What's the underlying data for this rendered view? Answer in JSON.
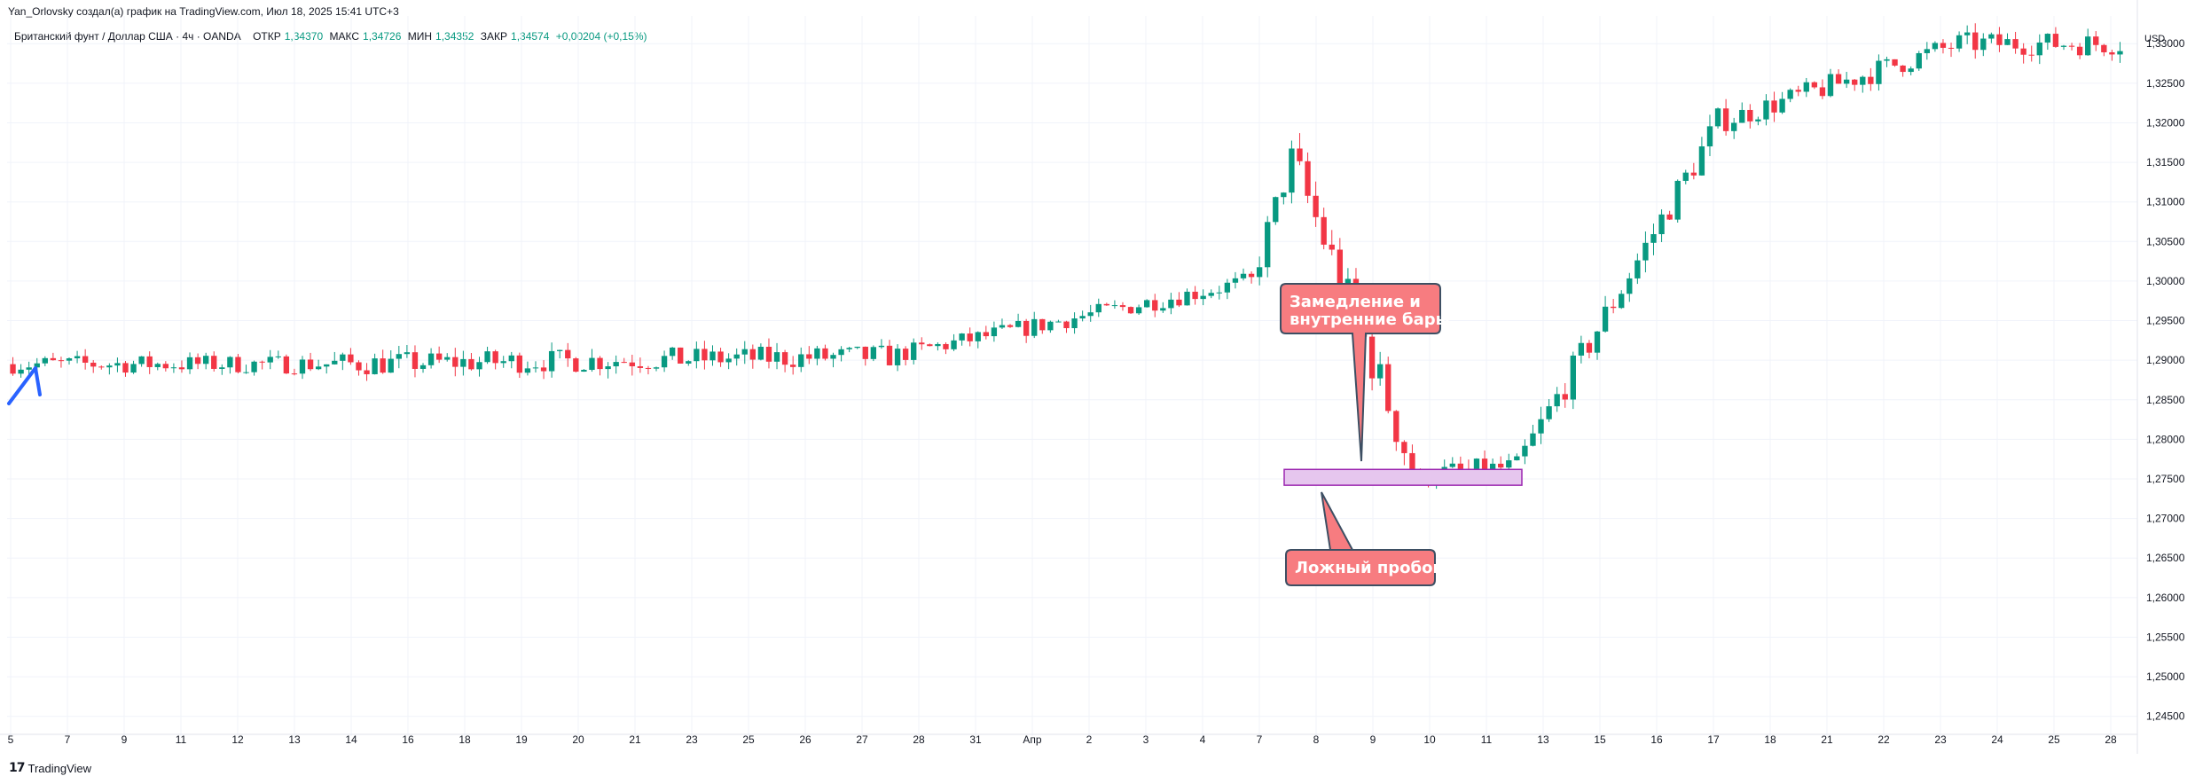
{
  "header": {
    "attribution": "Yan_Orlovsky создал(а) график на TradingView.com, Июл 18, 2025 15:41 UTC+3"
  },
  "legend": {
    "symbol": "Британский фунт / Доллар США · 4ч · OANDA",
    "open_label": "ОТКР",
    "open": "1,34370",
    "high_label": "МАКС",
    "high": "1,34726",
    "low_label": "МИН",
    "low": "1,34352",
    "close_label": "ЗАКР",
    "close": "1,34574",
    "change": "+0,00204 (+0,15%)"
  },
  "currency": "USD",
  "brand": {
    "logo": "17",
    "name": "TradingView"
  },
  "colors": {
    "up": "#089981",
    "down": "#f23645",
    "grid": "#f0f3fa",
    "zone_fill": "#e6c6ee",
    "zone_stroke": "#9c27b0",
    "callout": "#f77c80",
    "callout_border": "#3d4f63",
    "arrow": "#2962ff"
  },
  "annotations": {
    "slowdown": {
      "line1": "Замедление и",
      "line2": "внутренние бары"
    },
    "false_breakout": "Ложный пробой"
  },
  "chart_data": {
    "type": "candlestick",
    "y_ticks": [
      "1,33000",
      "1,32500",
      "1,32000",
      "1,31500",
      "1,31000",
      "1,30500",
      "1,30000",
      "1,29500",
      "1,29000",
      "1,28500",
      "1,28000",
      "1,27500",
      "1,27000",
      "1,26500",
      "1,26000",
      "1,25500",
      "1,25000",
      "1,24500"
    ],
    "ylim": [
      1.2425,
      1.3335
    ],
    "x_ticks": [
      "5",
      "7",
      "9",
      "11",
      "12",
      "13",
      "14",
      "16",
      "18",
      "19",
      "20",
      "21",
      "23",
      "25",
      "26",
      "27",
      "28",
      "31",
      "Апр",
      "2",
      "3",
      "4",
      "7",
      "8",
      "9",
      "10",
      "11",
      "13",
      "15",
      "16",
      "17",
      "18",
      "21",
      "22",
      "23",
      "24",
      "25",
      "28"
    ],
    "zone": {
      "low": 1.2742,
      "high": 1.2762,
      "x_from": "Апр 7",
      "x_to": "Апр 11"
    },
    "segments": [
      {
        "from": 1.2895,
        "to": 1.2895,
        "count": 40,
        "volatility": 0.0012
      },
      {
        "from": 1.2895,
        "to": 1.2905,
        "count": 70,
        "volatility": 0.0015
      },
      {
        "from": 1.2905,
        "to": 1.3,
        "count": 45,
        "volatility": 0.0012
      },
      {
        "from": 1.3,
        "to": 1.3155,
        "count": 5,
        "volatility": 0.002
      },
      {
        "from": 1.3155,
        "to": 1.29,
        "count": 10,
        "volatility": 0.003
      },
      {
        "from": 1.29,
        "to": 1.2735,
        "count": 6,
        "volatility": 0.003
      },
      {
        "from": 1.2755,
        "to": 1.2765,
        "count": 12,
        "volatility": 0.0015
      },
      {
        "from": 1.2765,
        "to": 1.32,
        "count": 25,
        "volatility": 0.002
      },
      {
        "from": 1.32,
        "to": 1.33,
        "count": 30,
        "volatility": 0.0015
      },
      {
        "from": 1.33,
        "to": 1.33,
        "count": 20,
        "volatility": 0.0015
      }
    ]
  }
}
